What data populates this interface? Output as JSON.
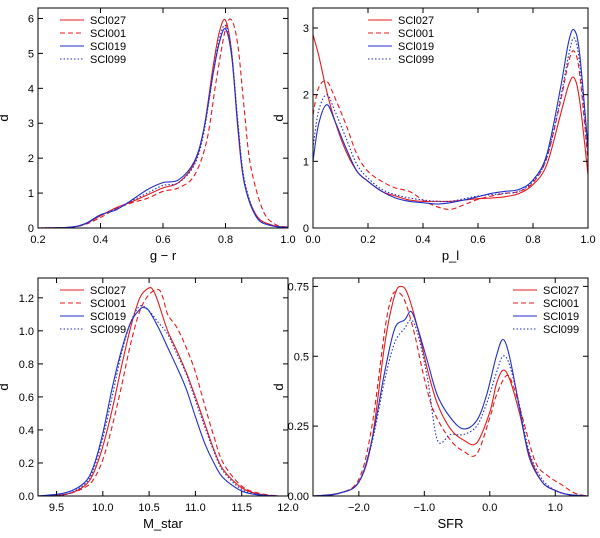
{
  "colors": {
    "SCl027": "#e41a1c",
    "SCl001": "#e41a1c",
    "SCl019": "#1f2ec8",
    "SCl099": "#1f2ec8"
  },
  "series_styles": {
    "SCl027": "solid",
    "SCl001": "dashed",
    "SCl019": "solid",
    "SCl099": "dotted"
  },
  "chart_data": [
    {
      "type": "line",
      "xlabel": "g − r",
      "ylabel": "d",
      "xlim": [
        0.2,
        1.0
      ],
      "ylim": [
        0,
        6.3
      ],
      "xticks": [
        0.2,
        0.4,
        0.6,
        0.8,
        1.0
      ],
      "xtick_labels": [
        "0.2",
        "0.4",
        "0.6",
        "0.8",
        "1.0"
      ],
      "yticks": [
        0,
        1,
        2,
        3,
        4,
        5,
        6
      ],
      "ytick_labels": [
        "0",
        "1",
        "2",
        "3",
        "4",
        "5",
        "6"
      ],
      "legend": [
        "SCl027",
        "SCl001",
        "SCl019",
        "SCl099"
      ],
      "legend_position": "top-left",
      "series": [
        {
          "name": "SCl027",
          "x": [
            0.2,
            0.3,
            0.35,
            0.4,
            0.45,
            0.5,
            0.55,
            0.6,
            0.65,
            0.7,
            0.73,
            0.76,
            0.78,
            0.8,
            0.82,
            0.84,
            0.86,
            0.9,
            0.95,
            1.0
          ],
          "y": [
            0,
            0.02,
            0.12,
            0.35,
            0.58,
            0.75,
            0.95,
            1.15,
            1.3,
            1.85,
            2.8,
            4.6,
            5.6,
            5.95,
            5.0,
            2.8,
            1.3,
            0.35,
            0.08,
            0.02
          ]
        },
        {
          "name": "SCl001",
          "x": [
            0.2,
            0.3,
            0.35,
            0.4,
            0.45,
            0.5,
            0.55,
            0.6,
            0.65,
            0.7,
            0.74,
            0.77,
            0.8,
            0.82,
            0.84,
            0.86,
            0.88,
            0.92,
            0.96,
            1.0
          ],
          "y": [
            0,
            0.02,
            0.1,
            0.3,
            0.55,
            0.72,
            0.85,
            1.05,
            1.15,
            1.5,
            2.5,
            4.2,
            5.7,
            5.95,
            5.2,
            3.4,
            1.8,
            0.5,
            0.1,
            0.03
          ]
        },
        {
          "name": "SCl019",
          "x": [
            0.2,
            0.3,
            0.35,
            0.4,
            0.45,
            0.5,
            0.55,
            0.6,
            0.65,
            0.7,
            0.73,
            0.76,
            0.78,
            0.8,
            0.82,
            0.84,
            0.86,
            0.9,
            0.95,
            1.0
          ],
          "y": [
            0,
            0.02,
            0.12,
            0.38,
            0.52,
            0.8,
            1.1,
            1.3,
            1.38,
            1.9,
            2.8,
            4.4,
            5.3,
            5.7,
            4.9,
            2.9,
            1.3,
            0.3,
            0.06,
            0.02
          ]
        },
        {
          "name": "SCl099",
          "x": [
            0.2,
            0.3,
            0.35,
            0.4,
            0.45,
            0.5,
            0.55,
            0.6,
            0.65,
            0.7,
            0.73,
            0.76,
            0.78,
            0.8,
            0.82,
            0.84,
            0.86,
            0.9,
            0.95,
            1.0
          ],
          "y": [
            0,
            0.02,
            0.11,
            0.36,
            0.55,
            0.78,
            1.0,
            1.22,
            1.3,
            1.8,
            2.7,
            4.4,
            5.4,
            5.8,
            5.0,
            3.0,
            1.4,
            0.32,
            0.07,
            0.02
          ]
        }
      ]
    },
    {
      "type": "line",
      "xlabel": "p_l",
      "ylabel": "d",
      "xlim": [
        0.0,
        1.0
      ],
      "ylim": [
        0,
        3.3
      ],
      "xticks": [
        0.0,
        0.2,
        0.4,
        0.6,
        0.8,
        1.0
      ],
      "xtick_labels": [
        "0.0",
        "0.2",
        "0.4",
        "0.6",
        "0.8",
        "1.0"
      ],
      "yticks": [
        0,
        1,
        2,
        3
      ],
      "ytick_labels": [
        "0",
        "1",
        "2",
        "3"
      ],
      "legend": [
        "SCl027",
        "SCl001",
        "SCl019",
        "SCl099"
      ],
      "legend_position": "top-right",
      "series": [
        {
          "name": "SCl027",
          "x": [
            0,
            0.02,
            0.05,
            0.08,
            0.12,
            0.16,
            0.2,
            0.25,
            0.3,
            0.35,
            0.4,
            0.45,
            0.5,
            0.55,
            0.6,
            0.65,
            0.7,
            0.75,
            0.8,
            0.85,
            0.9,
            0.93,
            0.95,
            0.97,
            1.0
          ],
          "y": [
            2.9,
            2.6,
            2.05,
            1.6,
            1.15,
            0.85,
            0.7,
            0.55,
            0.48,
            0.42,
            0.4,
            0.4,
            0.4,
            0.42,
            0.44,
            0.45,
            0.47,
            0.52,
            0.65,
            0.95,
            1.7,
            2.15,
            2.25,
            1.9,
            0.8
          ]
        },
        {
          "name": "SCl001",
          "x": [
            0,
            0.02,
            0.05,
            0.08,
            0.12,
            0.16,
            0.2,
            0.25,
            0.3,
            0.35,
            0.4,
            0.45,
            0.5,
            0.55,
            0.6,
            0.65,
            0.7,
            0.75,
            0.8,
            0.85,
            0.9,
            0.93,
            0.95,
            0.97,
            1.0
          ],
          "y": [
            1.7,
            2.1,
            2.2,
            1.95,
            1.55,
            1.1,
            0.85,
            0.7,
            0.6,
            0.55,
            0.42,
            0.32,
            0.28,
            0.35,
            0.43,
            0.48,
            0.52,
            0.55,
            0.68,
            1.05,
            1.9,
            2.5,
            2.65,
            2.3,
            1.0
          ]
        },
        {
          "name": "SCl019",
          "x": [
            0,
            0.02,
            0.05,
            0.08,
            0.12,
            0.16,
            0.2,
            0.25,
            0.3,
            0.35,
            0.4,
            0.45,
            0.5,
            0.55,
            0.6,
            0.65,
            0.7,
            0.75,
            0.8,
            0.85,
            0.9,
            0.93,
            0.95,
            0.97,
            1.0
          ],
          "y": [
            1.0,
            1.55,
            1.85,
            1.6,
            1.2,
            0.85,
            0.7,
            0.55,
            0.45,
            0.4,
            0.38,
            0.36,
            0.38,
            0.42,
            0.47,
            0.52,
            0.55,
            0.58,
            0.72,
            1.1,
            2.1,
            2.8,
            2.97,
            2.6,
            1.2
          ]
        },
        {
          "name": "SCl099",
          "x": [
            0,
            0.02,
            0.05,
            0.08,
            0.12,
            0.16,
            0.2,
            0.25,
            0.3,
            0.35,
            0.4,
            0.45,
            0.5,
            0.55,
            0.6,
            0.65,
            0.7,
            0.75,
            0.8,
            0.85,
            0.9,
            0.93,
            0.95,
            0.97,
            1.0
          ],
          "y": [
            1.2,
            1.75,
            2.0,
            1.75,
            1.35,
            0.95,
            0.75,
            0.58,
            0.5,
            0.45,
            0.42,
            0.4,
            0.4,
            0.44,
            0.48,
            0.5,
            0.52,
            0.55,
            0.7,
            1.05,
            1.95,
            2.6,
            2.85,
            2.45,
            1.1
          ]
        }
      ]
    },
    {
      "type": "line",
      "xlabel": "M_star",
      "ylabel": "d",
      "xlim": [
        9.3,
        12.0
      ],
      "ylim": [
        0,
        1.32
      ],
      "xticks": [
        9.5,
        10.0,
        10.5,
        11.0,
        11.5,
        12.0
      ],
      "xtick_labels": [
        "9.5",
        "10.0",
        "10.5",
        "11.0",
        "11.5",
        "12.0"
      ],
      "yticks": [
        0,
        0.2,
        0.4,
        0.6,
        0.8,
        1.0,
        1.2
      ],
      "ytick_labels": [
        "0.0",
        "0.2",
        "0.4",
        "0.6",
        "0.8",
        "1.0",
        "1.2"
      ],
      "legend": [
        "SCl027",
        "SCl001",
        "SCl019",
        "SCl099"
      ],
      "legend_position": "top-left",
      "series": [
        {
          "name": "SCl027",
          "x": [
            9.3,
            9.6,
            9.8,
            9.9,
            10.0,
            10.1,
            10.2,
            10.3,
            10.4,
            10.5,
            10.55,
            10.6,
            10.7,
            10.8,
            10.9,
            11.0,
            11.1,
            11.2,
            11.3,
            11.5,
            11.7,
            11.9
          ],
          "y": [
            0,
            0.01,
            0.06,
            0.14,
            0.3,
            0.52,
            0.78,
            1.02,
            1.2,
            1.26,
            1.24,
            1.17,
            1.0,
            0.88,
            0.75,
            0.6,
            0.44,
            0.28,
            0.16,
            0.05,
            0.01,
            0
          ]
        },
        {
          "name": "SCl001",
          "x": [
            9.3,
            9.6,
            9.8,
            9.9,
            10.0,
            10.1,
            10.2,
            10.3,
            10.4,
            10.5,
            10.6,
            10.65,
            10.7,
            10.8,
            10.9,
            11.0,
            11.1,
            11.2,
            11.3,
            11.5,
            11.7,
            11.9
          ],
          "y": [
            0,
            0.01,
            0.05,
            0.1,
            0.22,
            0.42,
            0.66,
            0.92,
            1.12,
            1.22,
            1.25,
            1.2,
            1.1,
            1.02,
            0.9,
            0.75,
            0.55,
            0.36,
            0.2,
            0.06,
            0.015,
            0
          ]
        },
        {
          "name": "SCl019",
          "x": [
            9.3,
            9.6,
            9.8,
            9.9,
            10.0,
            10.1,
            10.2,
            10.3,
            10.4,
            10.45,
            10.5,
            10.6,
            10.7,
            10.8,
            10.9,
            11.0,
            11.1,
            11.2,
            11.3,
            11.5,
            11.7,
            11.9
          ],
          "y": [
            0,
            0.02,
            0.08,
            0.18,
            0.38,
            0.65,
            0.88,
            1.05,
            1.13,
            1.14,
            1.12,
            1.02,
            0.9,
            0.78,
            0.65,
            0.48,
            0.32,
            0.2,
            0.11,
            0.03,
            0.005,
            0
          ]
        },
        {
          "name": "SCl099",
          "x": [
            9.3,
            9.6,
            9.8,
            9.9,
            10.0,
            10.1,
            10.2,
            10.3,
            10.4,
            10.5,
            10.6,
            10.7,
            10.8,
            10.9,
            11.0,
            11.1,
            11.2,
            11.3,
            11.5,
            11.7,
            11.9
          ],
          "y": [
            0,
            0.01,
            0.07,
            0.16,
            0.35,
            0.6,
            0.86,
            1.05,
            1.15,
            1.12,
            1.05,
            0.98,
            0.86,
            0.74,
            0.58,
            0.42,
            0.27,
            0.15,
            0.04,
            0.01,
            0
          ]
        }
      ]
    },
    {
      "type": "line",
      "xlabel": "SFR",
      "ylabel": "d",
      "xlim": [
        -2.7,
        1.5
      ],
      "ylim": [
        0,
        0.78
      ],
      "xticks": [
        -2.0,
        -1.0,
        0.0,
        1.0
      ],
      "xtick_labels": [
        "−2.0",
        "−1.0",
        "0.0",
        "1.0"
      ],
      "yticks": [
        0,
        0.25,
        0.5,
        0.75
      ],
      "ytick_labels": [
        "0.00",
        "0.25",
        "0.5",
        "0.75"
      ],
      "legend": [
        "SCl027",
        "SCl001",
        "SCl019",
        "SCl099"
      ],
      "legend_position": "top-right",
      "series": [
        {
          "name": "SCl027",
          "x": [
            -2.7,
            -2.3,
            -2.0,
            -1.8,
            -1.6,
            -1.45,
            -1.35,
            -1.25,
            -1.1,
            -0.95,
            -0.8,
            -0.6,
            -0.4,
            -0.2,
            0.0,
            0.1,
            0.2,
            0.3,
            0.45,
            0.6,
            0.8,
            1.0,
            1.2,
            1.5
          ],
          "y": [
            0,
            0.01,
            0.05,
            0.2,
            0.55,
            0.72,
            0.75,
            0.72,
            0.6,
            0.45,
            0.33,
            0.24,
            0.2,
            0.19,
            0.3,
            0.4,
            0.45,
            0.42,
            0.3,
            0.15,
            0.05,
            0.02,
            0.005,
            0
          ]
        },
        {
          "name": "SCl001",
          "x": [
            -2.7,
            -2.3,
            -2.0,
            -1.8,
            -1.6,
            -1.5,
            -1.42,
            -1.3,
            -1.15,
            -1.0,
            -0.85,
            -0.6,
            -0.4,
            -0.2,
            0.0,
            0.1,
            0.25,
            0.35,
            0.5,
            0.7,
            0.9,
            1.1,
            1.3,
            1.5
          ],
          "y": [
            0,
            0.01,
            0.06,
            0.25,
            0.6,
            0.71,
            0.73,
            0.7,
            0.58,
            0.42,
            0.3,
            0.2,
            0.16,
            0.15,
            0.28,
            0.36,
            0.43,
            0.4,
            0.28,
            0.12,
            0.07,
            0.04,
            0.01,
            0
          ]
        },
        {
          "name": "SCl019",
          "x": [
            -2.7,
            -2.3,
            -2.0,
            -1.8,
            -1.6,
            -1.45,
            -1.3,
            -1.2,
            -1.1,
            -0.95,
            -0.8,
            -0.6,
            -0.4,
            -0.2,
            -0.05,
            0.1,
            0.2,
            0.3,
            0.45,
            0.6,
            0.8,
            1.0,
            1.2,
            1.5
          ],
          "y": [
            0,
            0.01,
            0.05,
            0.2,
            0.45,
            0.6,
            0.63,
            0.66,
            0.6,
            0.48,
            0.36,
            0.28,
            0.24,
            0.27,
            0.36,
            0.5,
            0.56,
            0.5,
            0.32,
            0.14,
            0.05,
            0.02,
            0.005,
            0
          ]
        },
        {
          "name": "SCl099",
          "x": [
            -2.7,
            -2.3,
            -2.0,
            -1.8,
            -1.6,
            -1.45,
            -1.3,
            -1.2,
            -1.1,
            -0.95,
            -0.8,
            -0.6,
            -0.4,
            -0.2,
            -0.05,
            0.1,
            0.2,
            0.3,
            0.45,
            0.6,
            0.8,
            1.0,
            1.2,
            1.5
          ],
          "y": [
            0,
            0.01,
            0.05,
            0.19,
            0.42,
            0.55,
            0.6,
            0.63,
            0.58,
            0.42,
            0.2,
            0.22,
            0.22,
            0.25,
            0.33,
            0.44,
            0.5,
            0.47,
            0.33,
            0.16,
            0.06,
            0.02,
            0.005,
            0
          ]
        }
      ]
    }
  ]
}
